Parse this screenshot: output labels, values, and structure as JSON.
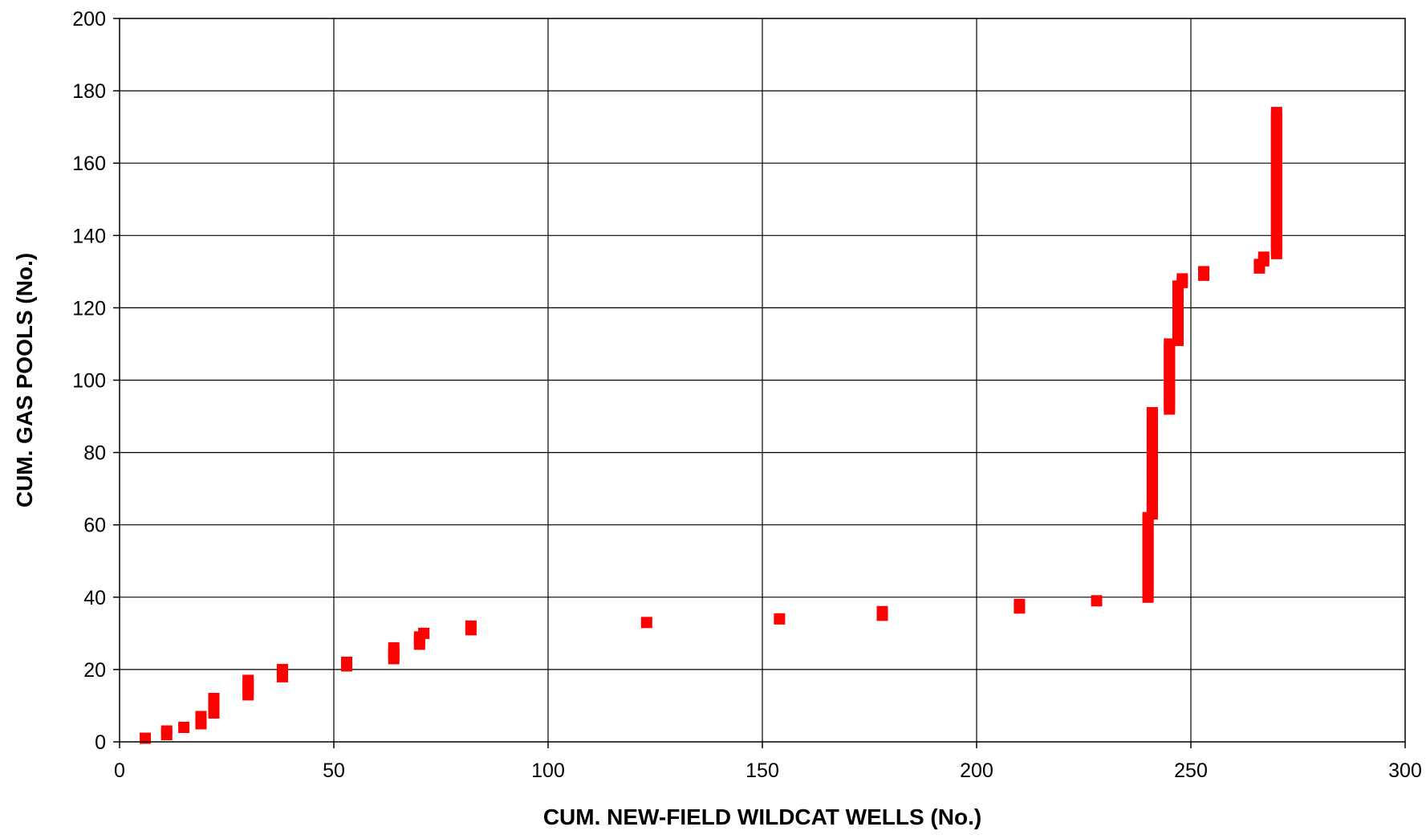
{
  "chart_data": {
    "type": "scatter",
    "title": "",
    "xlabel": "CUM. NEW-FIELD WILDCAT WELLS (No.)",
    "ylabel": "CUM. GAS POOLS (No.)",
    "xlim": [
      0,
      300
    ],
    "ylim": [
      0,
      200
    ],
    "xticks": [
      "0",
      "50",
      "100",
      "150",
      "200",
      "250",
      "300"
    ],
    "yticks": [
      "0",
      "20",
      "40",
      "60",
      "80",
      "100",
      "120",
      "140",
      "160",
      "180",
      "200"
    ],
    "grid": true,
    "legend": "none",
    "marker": "square",
    "marker_color": "#ff0000",
    "series": [
      {
        "points": [
          [
            6,
            1
          ],
          [
            11,
            2
          ],
          [
            11,
            3
          ],
          [
            15,
            4
          ],
          [
            19,
            5
          ],
          [
            19,
            6
          ],
          [
            19,
            7
          ],
          [
            22,
            8
          ],
          [
            22,
            9
          ],
          [
            22,
            10
          ],
          [
            22,
            11
          ],
          [
            22,
            12
          ],
          [
            30,
            13
          ],
          [
            30,
            14
          ],
          [
            30,
            15
          ],
          [
            30,
            16
          ],
          [
            30,
            17
          ],
          [
            38,
            18
          ],
          [
            38,
            19
          ],
          [
            38,
            20
          ],
          [
            53,
            21
          ],
          [
            53,
            22
          ],
          [
            64,
            23
          ],
          [
            64,
            24
          ],
          [
            64,
            25
          ],
          [
            64,
            26
          ],
          [
            70,
            27
          ],
          [
            70,
            28
          ],
          [
            70,
            29
          ],
          [
            71,
            30
          ],
          [
            82,
            31
          ],
          [
            82,
            32
          ],
          [
            123,
            33
          ],
          [
            154,
            34
          ],
          [
            178,
            35
          ],
          [
            178,
            36
          ],
          [
            210,
            37
          ],
          [
            210,
            38
          ],
          [
            228,
            39
          ],
          [
            240,
            40
          ],
          [
            240,
            41
          ],
          [
            240,
            42
          ],
          [
            240,
            43
          ],
          [
            240,
            44
          ],
          [
            240,
            45
          ],
          [
            240,
            46
          ],
          [
            240,
            47
          ],
          [
            240,
            48
          ],
          [
            240,
            49
          ],
          [
            240,
            50
          ],
          [
            240,
            51
          ],
          [
            240,
            52
          ],
          [
            240,
            53
          ],
          [
            240,
            54
          ],
          [
            240,
            55
          ],
          [
            240,
            56
          ],
          [
            240,
            57
          ],
          [
            240,
            58
          ],
          [
            240,
            59
          ],
          [
            240,
            60
          ],
          [
            240,
            61
          ],
          [
            240,
            62
          ],
          [
            241,
            63
          ],
          [
            241,
            64
          ],
          [
            241,
            65
          ],
          [
            241,
            66
          ],
          [
            241,
            67
          ],
          [
            241,
            68
          ],
          [
            241,
            69
          ],
          [
            241,
            70
          ],
          [
            241,
            71
          ],
          [
            241,
            72
          ],
          [
            241,
            73
          ],
          [
            241,
            74
          ],
          [
            241,
            75
          ],
          [
            241,
            76
          ],
          [
            241,
            77
          ],
          [
            241,
            78
          ],
          [
            241,
            79
          ],
          [
            241,
            80
          ],
          [
            241,
            81
          ],
          [
            241,
            82
          ],
          [
            241,
            83
          ],
          [
            241,
            84
          ],
          [
            241,
            85
          ],
          [
            241,
            86
          ],
          [
            241,
            87
          ],
          [
            241,
            88
          ],
          [
            241,
            89
          ],
          [
            241,
            90
          ],
          [
            241,
            91
          ],
          [
            245,
            92
          ],
          [
            245,
            93
          ],
          [
            245,
            94
          ],
          [
            245,
            95
          ],
          [
            245,
            96
          ],
          [
            245,
            97
          ],
          [
            245,
            98
          ],
          [
            245,
            99
          ],
          [
            245,
            100
          ],
          [
            245,
            101
          ],
          [
            245,
            102
          ],
          [
            245,
            103
          ],
          [
            245,
            104
          ],
          [
            245,
            105
          ],
          [
            245,
            106
          ],
          [
            245,
            107
          ],
          [
            245,
            108
          ],
          [
            245,
            109
          ],
          [
            245,
            110
          ],
          [
            247,
            111
          ],
          [
            247,
            112
          ],
          [
            247,
            113
          ],
          [
            247,
            114
          ],
          [
            247,
            115
          ],
          [
            247,
            116
          ],
          [
            247,
            117
          ],
          [
            247,
            118
          ],
          [
            247,
            119
          ],
          [
            247,
            120
          ],
          [
            247,
            121
          ],
          [
            247,
            122
          ],
          [
            247,
            123
          ],
          [
            247,
            124
          ],
          [
            247,
            125
          ],
          [
            247,
            126
          ],
          [
            248,
            127
          ],
          [
            248,
            128
          ],
          [
            253,
            129
          ],
          [
            253,
            130
          ],
          [
            266,
            131
          ],
          [
            266,
            132
          ],
          [
            267,
            133
          ],
          [
            267,
            134
          ],
          [
            270,
            135
          ],
          [
            270,
            136
          ],
          [
            270,
            137
          ],
          [
            270,
            138
          ],
          [
            270,
            139
          ],
          [
            270,
            140
          ],
          [
            270,
            141
          ],
          [
            270,
            142
          ],
          [
            270,
            143
          ],
          [
            270,
            144
          ],
          [
            270,
            145
          ],
          [
            270,
            146
          ],
          [
            270,
            147
          ],
          [
            270,
            148
          ],
          [
            270,
            149
          ],
          [
            270,
            150
          ],
          [
            270,
            151
          ],
          [
            270,
            152
          ],
          [
            270,
            153
          ],
          [
            270,
            154
          ],
          [
            270,
            155
          ],
          [
            270,
            156
          ],
          [
            270,
            157
          ],
          [
            270,
            158
          ],
          [
            270,
            159
          ],
          [
            270,
            160
          ],
          [
            270,
            161
          ],
          [
            270,
            162
          ],
          [
            270,
            163
          ],
          [
            270,
            164
          ],
          [
            270,
            165
          ],
          [
            270,
            166
          ],
          [
            270,
            167
          ],
          [
            270,
            168
          ],
          [
            270,
            169
          ],
          [
            270,
            170
          ],
          [
            270,
            171
          ],
          [
            270,
            172
          ],
          [
            270,
            173
          ],
          [
            270,
            174
          ]
        ]
      }
    ]
  }
}
